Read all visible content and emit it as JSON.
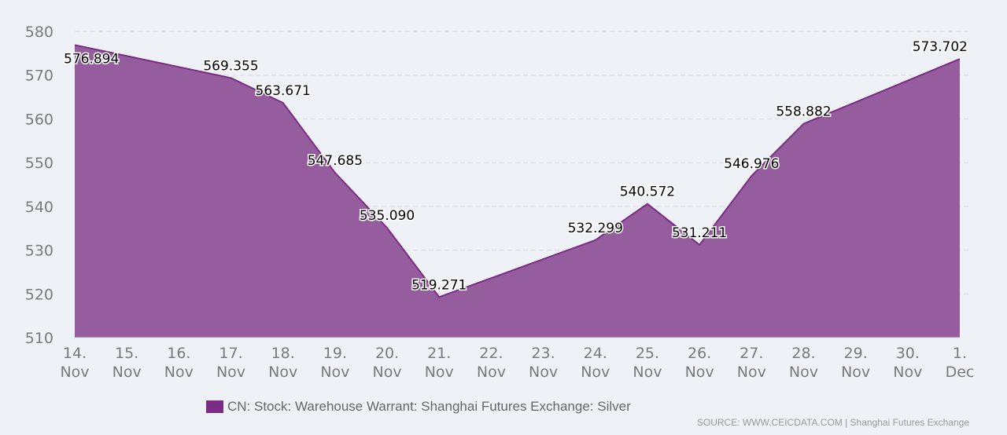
{
  "chart_data": {
    "type": "area",
    "title": "",
    "xlabel": "",
    "ylabel": "",
    "ylim": [
      510,
      580
    ],
    "yticks": [
      510,
      520,
      530,
      540,
      550,
      560,
      570,
      580
    ],
    "grid": true,
    "categories": [
      [
        "14.",
        "Nov"
      ],
      [
        "15.",
        "Nov"
      ],
      [
        "16.",
        "Nov"
      ],
      [
        "17.",
        "Nov"
      ],
      [
        "18.",
        "Nov"
      ],
      [
        "19.",
        "Nov"
      ],
      [
        "20.",
        "Nov"
      ],
      [
        "21.",
        "Nov"
      ],
      [
        "22.",
        "Nov"
      ],
      [
        "23.",
        "Nov"
      ],
      [
        "24.",
        "Nov"
      ],
      [
        "25.",
        "Nov"
      ],
      [
        "26.",
        "Nov"
      ],
      [
        "27.",
        "Nov"
      ],
      [
        "28.",
        "Nov"
      ],
      [
        "29.",
        "Nov"
      ],
      [
        "30.",
        "Nov"
      ],
      [
        "1.",
        "Dec"
      ]
    ],
    "series": [
      {
        "name": "CN: Stock: Warehouse Warrant: Shanghai Futures Exchange: Silver",
        "color": "#7b2d86",
        "fill": "#955c9e",
        "points": [
          {
            "index": 0,
            "value": 576.894
          },
          {
            "index": 3,
            "value": 569.355
          },
          {
            "index": 4,
            "value": 563.671
          },
          {
            "index": 5,
            "value": 547.685
          },
          {
            "index": 6,
            "value": 535.09
          },
          {
            "index": 7,
            "value": 519.271
          },
          {
            "index": 10,
            "value": 532.299
          },
          {
            "index": 11,
            "value": 540.572
          },
          {
            "index": 12,
            "value": 531.211
          },
          {
            "index": 13,
            "value": 546.976
          },
          {
            "index": 14,
            "value": 558.882
          },
          {
            "index": 17,
            "value": 573.702
          }
        ]
      }
    ],
    "legend": "bottom-center"
  },
  "source": "SOURCE: WWW.CEICDATA.COM | Shanghai Futures Exchange"
}
